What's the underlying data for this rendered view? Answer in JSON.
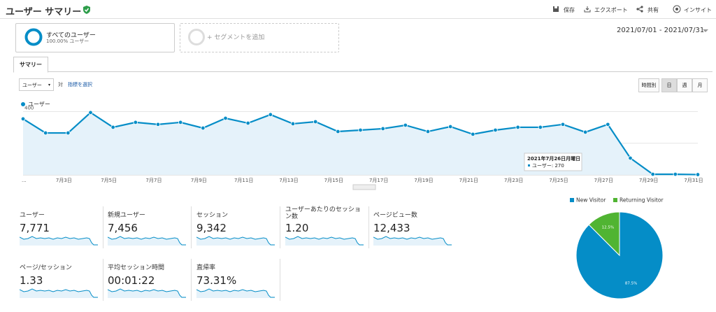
{
  "header": {
    "title": "ユーザー サマリー",
    "actions": [
      "保存",
      "エクスポート",
      "共有",
      "インサイト"
    ]
  },
  "segments": {
    "name": "すべてのユーザー",
    "detail": "100.00% ユーザー",
    "add": "+ セグメントを追加"
  },
  "date_range": "2021/07/01 - 2021/07/31",
  "tab": "サマリー",
  "controls": {
    "metric": "ユーザー",
    "versus": "対",
    "select": "指標を選択",
    "periods": [
      "時間別",
      "日",
      "週",
      "月"
    ]
  },
  "chart_data": [
    {
      "type": "line",
      "categories": [
        "...",
        null,
        "7月3日",
        null,
        "7月5日",
        null,
        "7月7日",
        null,
        "7月9日",
        null,
        "7月11日",
        null,
        "7月13日",
        null,
        "7月15日",
        null,
        "7月17日",
        null,
        "7月19日",
        null,
        "7月21日",
        null,
        "7月23日",
        null,
        "7月25日",
        null,
        "7月27日",
        null,
        "7月29日",
        null,
        "7月31日"
      ],
      "series": [
        {
          "name": "ユーザー",
          "color": "#058dc7",
          "values": [
            354,
            265,
            265,
            394,
            301,
            332,
            319,
            332,
            296,
            358,
            327,
            381,
            323,
            336,
            274,
            283,
            292,
            314,
            274,
            305,
            257,
            283,
            301,
            301,
            319,
            270,
            319,
            106,
            4,
            4,
            2
          ]
        }
      ],
      "ylim": [
        0,
        420
      ],
      "yticks": [
        200,
        400
      ],
      "grid": true,
      "legend": "top-left",
      "tooltip": {
        "title": "2021年7月26日月曜日",
        "label": "ユーザー: 270"
      }
    },
    {
      "type": "pie",
      "categories": [
        "New Visitor",
        "Returning Visitor"
      ],
      "values": [
        87.5,
        12.5
      ],
      "value_labels": [
        "87.5%",
        "12.5%"
      ],
      "colors": [
        "#058dc7",
        "#50b432"
      ],
      "legend": "top"
    }
  ],
  "metrics": [
    {
      "label": "ユーザー",
      "value": "7,771"
    },
    {
      "label": "新規ユーザー",
      "value": "7,456"
    },
    {
      "label": "セッション",
      "value": "9,342"
    },
    {
      "label": "ユーザーあたりのセッション数",
      "value": "1.20"
    },
    {
      "label": "ページビュー数",
      "value": "12,433"
    },
    {
      "label": "ページ/セッション",
      "value": "1.33"
    },
    {
      "label": "平均セッション時間",
      "value": "00:01:22"
    },
    {
      "label": "直帰率",
      "value": "73.31%"
    }
  ]
}
